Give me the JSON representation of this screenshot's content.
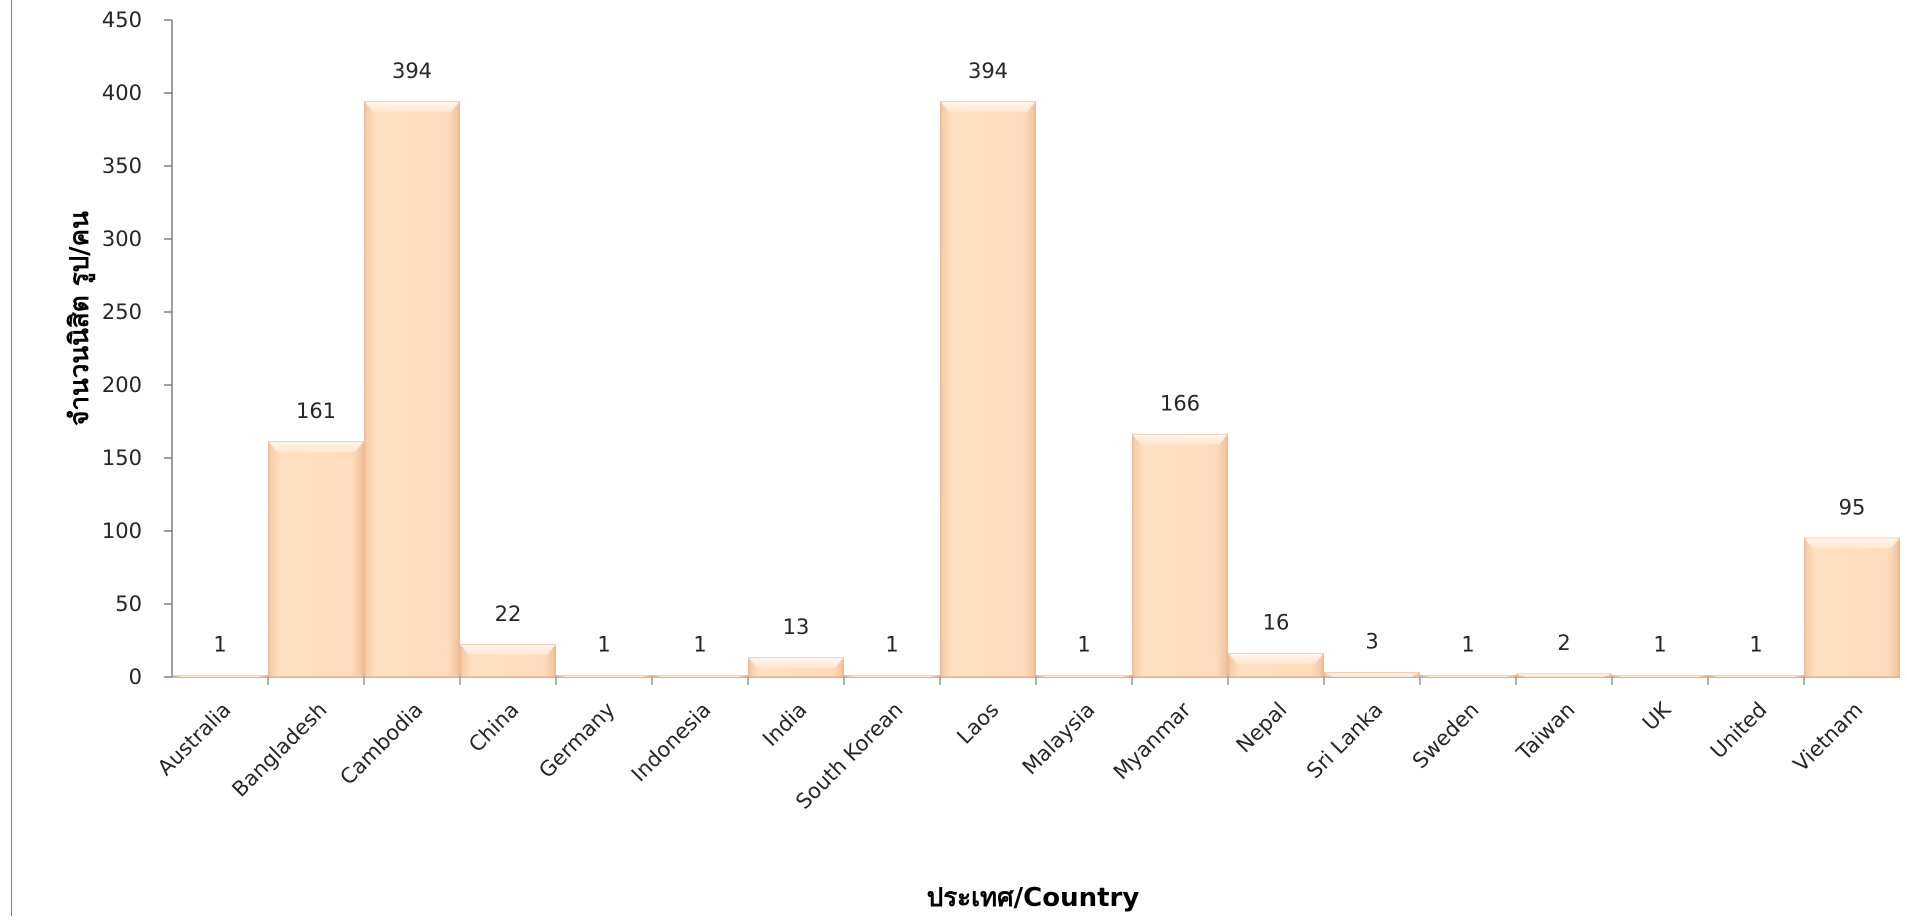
{
  "chart_data": {
    "type": "bar",
    "categories": [
      "Australia",
      "Bangladesh",
      "Cambodia",
      "China",
      "Germany",
      "Indonesia",
      "India",
      "South Korean",
      "Laos",
      "Malaysia",
      "Myanmar",
      "Nepal",
      "Sri Lanka",
      "Sweden",
      "Taiwan",
      "UK",
      "United",
      "Vietnam"
    ],
    "values": [
      1,
      161,
      394,
      22,
      1,
      1,
      13,
      1,
      394,
      1,
      166,
      16,
      3,
      1,
      2,
      1,
      1,
      95
    ],
    "xlabel": "ประเทศ/Country",
    "ylabel": "จำนวนนิสิต รูป/คน",
    "ylim": [
      0,
      450
    ],
    "yticks": [
      0,
      50,
      100,
      150,
      200,
      250,
      300,
      350,
      400,
      450
    ],
    "grid": false,
    "legend": "none",
    "bar_color": "#ffdcbb",
    "bar_edge_color": "#e8a879"
  }
}
